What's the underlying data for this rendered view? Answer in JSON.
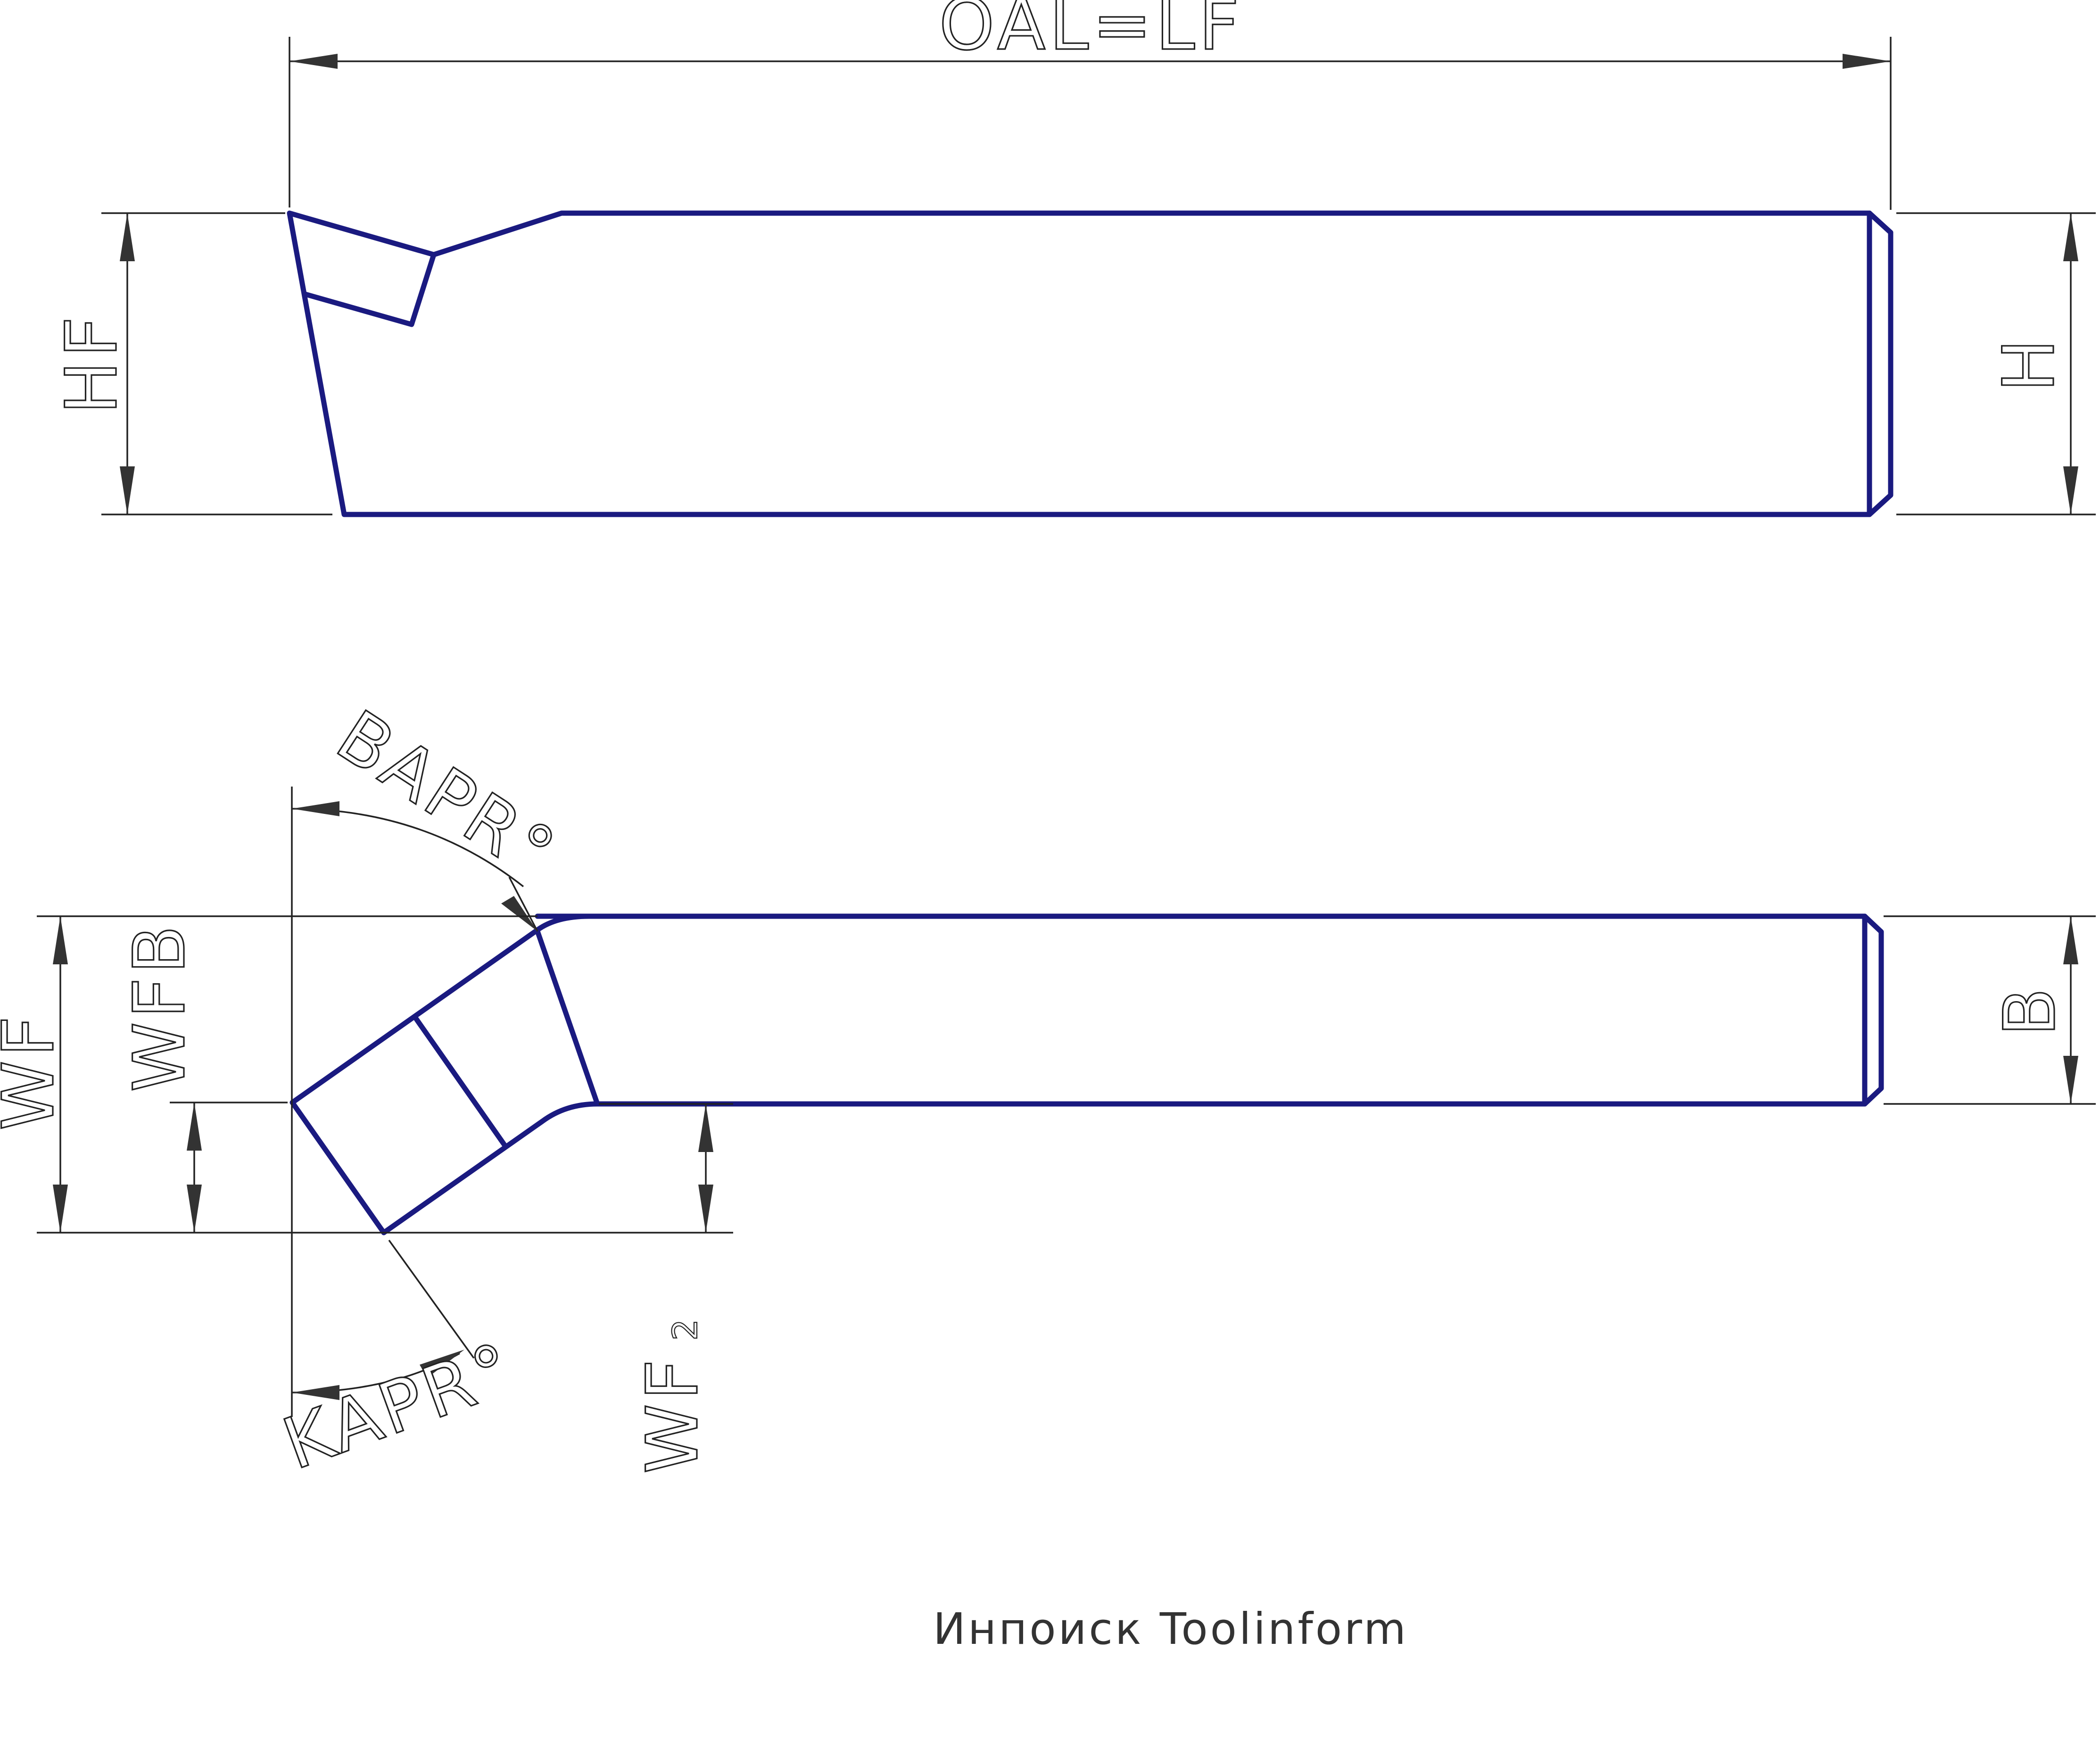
{
  "diagram": {
    "labels": {
      "oal_lf": "OAL=LF",
      "hf": "HF",
      "h": "H",
      "b": "B",
      "wf": "WF",
      "wfb": "WFB",
      "wf2_main": "WF",
      "wf2_sub": "2",
      "bapr": "BAPR°",
      "kapr": "KAPR°"
    },
    "credit": "Инпоиск Toolinform",
    "colors": {
      "tool_outline": "#1a1a80",
      "dimension_line": "#222222"
    }
  }
}
